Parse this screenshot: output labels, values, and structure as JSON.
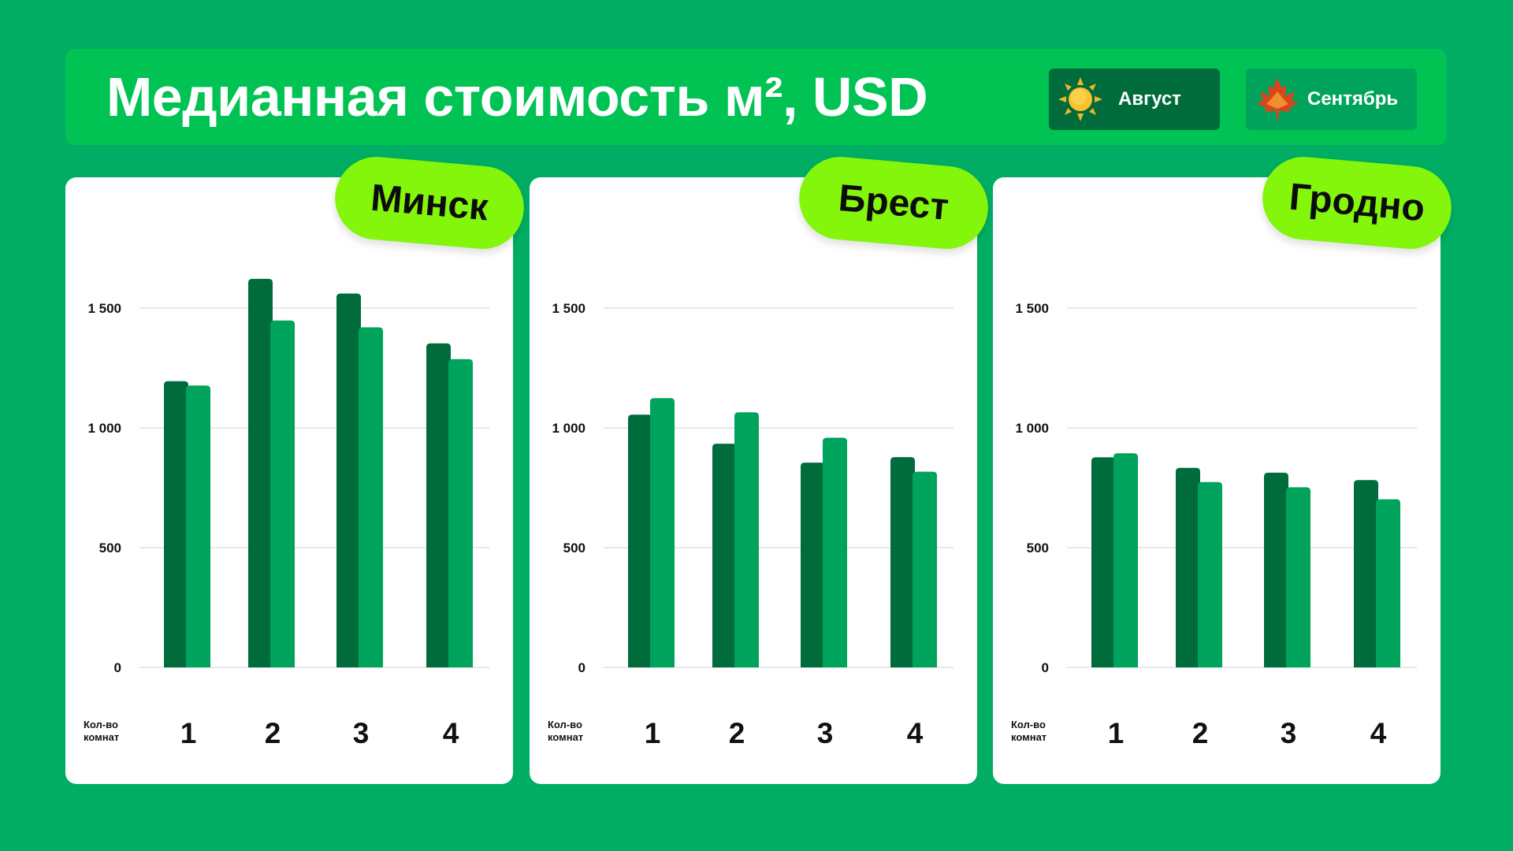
{
  "header": {
    "title": "Медианная стоимость м², USD"
  },
  "legend": [
    {
      "label": "Август",
      "icon": "sun-icon",
      "color": "#006b3b"
    },
    {
      "label": "Сентябрь",
      "icon": "maple-leaf-icon",
      "color": "#00a35c"
    }
  ],
  "chart_data": [
    {
      "type": "bar",
      "title": "Минск",
      "xlabel": "Кол-во комнат",
      "ylabel": "",
      "categories": [
        "1",
        "2",
        "3",
        "4"
      ],
      "ylim": [
        0,
        1500
      ],
      "yticks": [
        "0",
        "500",
        "1 000",
        "1 500"
      ],
      "grid": true,
      "series": [
        {
          "name": "Август",
          "values": [
            1195,
            1622,
            1561,
            1353
          ]
        },
        {
          "name": "Сентябрь",
          "values": [
            1177,
            1448,
            1420,
            1287
          ]
        }
      ]
    },
    {
      "type": "bar",
      "title": "Брест",
      "xlabel": "Кол-во комнат",
      "ylabel": "",
      "categories": [
        "1",
        "2",
        "3",
        "4"
      ],
      "ylim": [
        0,
        1500
      ],
      "yticks": [
        "0",
        "500",
        "1 000",
        "1 500"
      ],
      "grid": true,
      "series": [
        {
          "name": "Август",
          "values": [
            1055,
            934,
            855,
            878
          ]
        },
        {
          "name": "Сентябрь",
          "values": [
            1124,
            1065,
            959,
            817
          ]
        }
      ]
    },
    {
      "type": "bar",
      "title": "Гродно",
      "xlabel": "Кол-во комнат",
      "ylabel": "",
      "categories": [
        "1",
        "2",
        "3",
        "4"
      ],
      "ylim": [
        0,
        1500
      ],
      "yticks": [
        "0",
        "500",
        "1 000",
        "1 500"
      ],
      "grid": true,
      "series": [
        {
          "name": "Август",
          "values": [
            877,
            833,
            813,
            782
          ]
        },
        {
          "name": "Сентябрь",
          "values": [
            894,
            774,
            752,
            702
          ]
        }
      ]
    }
  ]
}
